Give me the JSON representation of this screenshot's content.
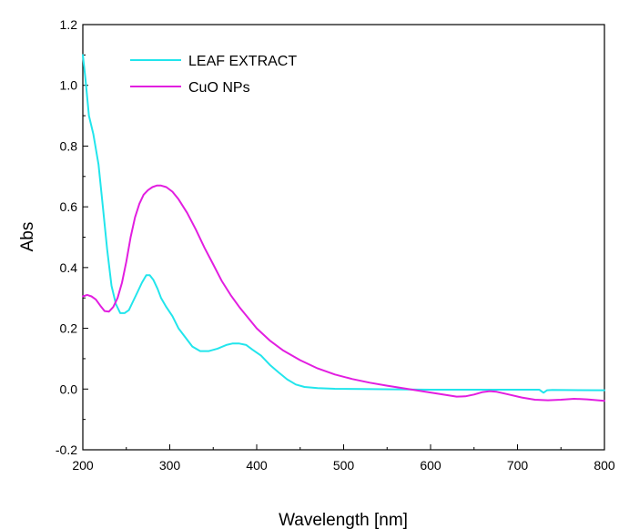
{
  "chart_data": {
    "type": "line",
    "xlabel": "Wavelength [nm]",
    "ylabel": "Abs",
    "xlim": [
      200,
      800
    ],
    "ylim": [
      -0.2,
      1.2
    ],
    "xticks": [
      200,
      300,
      400,
      500,
      600,
      700,
      800
    ],
    "yticks": [
      -0.2,
      0.0,
      0.2,
      0.4,
      0.6,
      0.8,
      1.0,
      1.2
    ],
    "ytick_labels": [
      "-0.2",
      "0.0",
      "0.2",
      "0.4",
      "0.6",
      "0.8",
      "1.0",
      "1.2"
    ],
    "grid": false,
    "legend_position": "top-left",
    "series": [
      {
        "name": "LEAF EXTRACT",
        "color": "#22e5ec",
        "points": [
          [
            200,
            1.1
          ],
          [
            203,
            1.02
          ],
          [
            207,
            0.9
          ],
          [
            212,
            0.84
          ],
          [
            218,
            0.74
          ],
          [
            223,
            0.6
          ],
          [
            228,
            0.46
          ],
          [
            233,
            0.34
          ],
          [
            238,
            0.28
          ],
          [
            243,
            0.25
          ],
          [
            248,
            0.25
          ],
          [
            253,
            0.26
          ],
          [
            258,
            0.29
          ],
          [
            263,
            0.32
          ],
          [
            268,
            0.35
          ],
          [
            273,
            0.375
          ],
          [
            277,
            0.375
          ],
          [
            281,
            0.36
          ],
          [
            286,
            0.33
          ],
          [
            290,
            0.3
          ],
          [
            296,
            0.27
          ],
          [
            303,
            0.24
          ],
          [
            310,
            0.2
          ],
          [
            318,
            0.17
          ],
          [
            326,
            0.14
          ],
          [
            335,
            0.125
          ],
          [
            345,
            0.125
          ],
          [
            355,
            0.133
          ],
          [
            365,
            0.145
          ],
          [
            372,
            0.15
          ],
          [
            380,
            0.15
          ],
          [
            388,
            0.145
          ],
          [
            395,
            0.13
          ],
          [
            405,
            0.11
          ],
          [
            415,
            0.08
          ],
          [
            425,
            0.055
          ],
          [
            435,
            0.032
          ],
          [
            445,
            0.015
          ],
          [
            455,
            0.007
          ],
          [
            470,
            0.003
          ],
          [
            490,
            0.001
          ],
          [
            520,
            0.0
          ],
          [
            560,
            -0.001
          ],
          [
            600,
            -0.002
          ],
          [
            650,
            -0.002
          ],
          [
            700,
            -0.002
          ],
          [
            725,
            -0.002
          ],
          [
            730,
            -0.012
          ],
          [
            734,
            -0.004
          ],
          [
            740,
            -0.003
          ],
          [
            800,
            -0.004
          ]
        ]
      },
      {
        "name": "CuO NPs",
        "color": "#e21ee0",
        "points": [
          [
            200,
            0.305
          ],
          [
            205,
            0.31
          ],
          [
            210,
            0.305
          ],
          [
            215,
            0.295
          ],
          [
            220,
            0.275
          ],
          [
            225,
            0.257
          ],
          [
            230,
            0.255
          ],
          [
            235,
            0.27
          ],
          [
            240,
            0.3
          ],
          [
            245,
            0.35
          ],
          [
            250,
            0.42
          ],
          [
            255,
            0.5
          ],
          [
            260,
            0.565
          ],
          [
            265,
            0.61
          ],
          [
            270,
            0.64
          ],
          [
            275,
            0.655
          ],
          [
            280,
            0.665
          ],
          [
            285,
            0.67
          ],
          [
            290,
            0.67
          ],
          [
            296,
            0.665
          ],
          [
            303,
            0.65
          ],
          [
            310,
            0.625
          ],
          [
            320,
            0.58
          ],
          [
            330,
            0.525
          ],
          [
            340,
            0.465
          ],
          [
            350,
            0.41
          ],
          [
            360,
            0.355
          ],
          [
            370,
            0.31
          ],
          [
            380,
            0.27
          ],
          [
            390,
            0.235
          ],
          [
            400,
            0.2
          ],
          [
            415,
            0.16
          ],
          [
            430,
            0.128
          ],
          [
            450,
            0.095
          ],
          [
            470,
            0.068
          ],
          [
            490,
            0.048
          ],
          [
            510,
            0.033
          ],
          [
            530,
            0.021
          ],
          [
            550,
            0.011
          ],
          [
            570,
            0.002
          ],
          [
            590,
            -0.007
          ],
          [
            610,
            -0.016
          ],
          [
            630,
            -0.025
          ],
          [
            640,
            -0.024
          ],
          [
            650,
            -0.018
          ],
          [
            660,
            -0.01
          ],
          [
            668,
            -0.007
          ],
          [
            676,
            -0.009
          ],
          [
            690,
            -0.018
          ],
          [
            705,
            -0.028
          ],
          [
            720,
            -0.035
          ],
          [
            735,
            -0.037
          ],
          [
            750,
            -0.035
          ],
          [
            765,
            -0.032
          ],
          [
            780,
            -0.034
          ],
          [
            800,
            -0.039
          ]
        ]
      }
    ]
  }
}
